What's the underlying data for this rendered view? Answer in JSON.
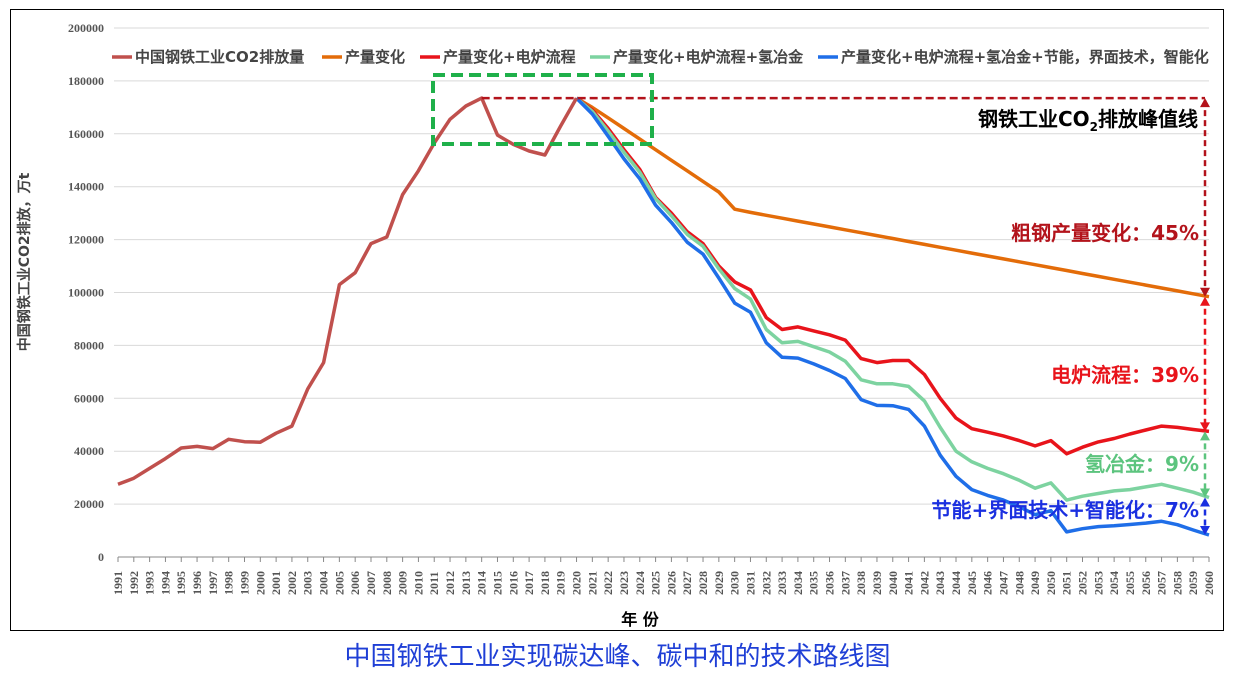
{
  "caption": "中国钢铁工业实现碳达峰、碳中和的技术路线图",
  "annotations": {
    "peak_label": "钢铁工业CO",
    "peak_sub": "2",
    "peak_suffix": "排放峰值线",
    "a1": "粗钢产量变化：45%",
    "a2": "电炉流程：39%",
    "a3": "氢冶金：9%",
    "a4": "节能+界面技术+智能化：7%"
  },
  "colors": {
    "historical": "#c0504d",
    "s1": "#e36c09",
    "s2": "#e8141b",
    "s3": "#7dd3a0",
    "s4": "#1f6ee8",
    "dashed_red": "#b3131b",
    "green_box": "#1fb04a",
    "a1": "#b3131b",
    "a2": "#e8141b",
    "a3": "#5cc47e",
    "a4": "#1a2fe0"
  },
  "chart_data": {
    "type": "line",
    "title": "",
    "xlabel": "年 份",
    "ylabel": "中国钢铁工业CO2排放，万t",
    "ylim": [
      0,
      200000
    ],
    "yticks": [
      0,
      20000,
      40000,
      60000,
      80000,
      100000,
      120000,
      140000,
      160000,
      180000,
      200000
    ],
    "xlim": [
      1991,
      2060
    ],
    "legend_position": "top",
    "series": [
      {
        "name": "中国钢铁工业CO2排放量",
        "color_key": "historical",
        "x": [
          1991,
          1992,
          1993,
          1994,
          1995,
          1996,
          1997,
          1998,
          1999,
          2000,
          2001,
          2002,
          2003,
          2004,
          2005,
          2006,
          2007,
          2008,
          2009,
          2010,
          2011,
          2012,
          2013,
          2014,
          2015,
          2016,
          2017,
          2018,
          2019,
          2020
        ],
        "y": [
          27500,
          29800,
          33500,
          37200,
          41200,
          41800,
          41000,
          44500,
          43600,
          43400,
          46800,
          49500,
          63500,
          73500,
          103000,
          107500,
          118500,
          121000,
          137000,
          146000,
          156500,
          165500,
          170500,
          173500,
          159500,
          156000,
          153500,
          152000,
          163000,
          173500
        ]
      },
      {
        "name": "产量变化",
        "color_key": "s1",
        "x": [
          2020,
          2021,
          2022,
          2023,
          2024,
          2025,
          2026,
          2027,
          2028,
          2029,
          2030,
          2031,
          2032,
          2033,
          2034,
          2035,
          2036,
          2037,
          2038,
          2039,
          2040,
          2041,
          2042,
          2043,
          2044,
          2045,
          2046,
          2047,
          2048,
          2049,
          2050,
          2051,
          2052,
          2053,
          2054,
          2055,
          2056,
          2057,
          2058,
          2059,
          2060
        ],
        "y": [
          173500,
          170000,
          166000,
          162000,
          158000,
          154000,
          150000,
          146000,
          142000,
          138000,
          131500,
          130300,
          129200,
          128100,
          127000,
          125900,
          124800,
          123700,
          122600,
          121500,
          120400,
          119300,
          118200,
          117100,
          116000,
          114900,
          113800,
          112700,
          111600,
          110500,
          109400,
          108300,
          107200,
          106100,
          105000,
          103900,
          102800,
          101700,
          100600,
          99500,
          98400
        ]
      },
      {
        "name": "产量变化+电炉流程",
        "color_key": "s2",
        "x": [
          2020,
          2021,
          2022,
          2023,
          2024,
          2025,
          2026,
          2027,
          2028,
          2029,
          2030,
          2031,
          2032,
          2033,
          2034,
          2035,
          2036,
          2037,
          2038,
          2039,
          2040,
          2041,
          2042,
          2043,
          2044,
          2045,
          2046,
          2047,
          2048,
          2049,
          2050,
          2051,
          2052,
          2053,
          2054,
          2055,
          2056,
          2057,
          2058,
          2059,
          2060
        ],
        "y": [
          173500,
          169000,
          162000,
          154000,
          146500,
          136000,
          130000,
          123000,
          118500,
          110000,
          104000,
          101000,
          90500,
          86000,
          87000,
          85500,
          84000,
          82000,
          75000,
          73500,
          74300,
          74300,
          69000,
          60000,
          52500,
          48500,
          47200,
          45800,
          44000,
          42000,
          44000,
          39000,
          41500,
          43500,
          44800,
          46500,
          48000,
          49500,
          49000,
          48200,
          47500
        ]
      },
      {
        "name": "产量变化+电炉流程+氢冶金",
        "color_key": "s3",
        "x": [
          2020,
          2021,
          2022,
          2023,
          2024,
          2025,
          2026,
          2027,
          2028,
          2029,
          2030,
          2031,
          2032,
          2033,
          2034,
          2035,
          2036,
          2037,
          2038,
          2039,
          2040,
          2041,
          2042,
          2043,
          2044,
          2045,
          2046,
          2047,
          2048,
          2049,
          2050,
          2051,
          2052,
          2053,
          2054,
          2055,
          2056,
          2057,
          2058,
          2059,
          2060
        ],
        "y": [
          173500,
          168500,
          161000,
          153000,
          145500,
          135500,
          129000,
          122000,
          117500,
          109000,
          101500,
          97500,
          86000,
          81000,
          81500,
          79500,
          77500,
          74000,
          67000,
          65500,
          65500,
          64500,
          59000,
          49000,
          40000,
          36000,
          33500,
          31500,
          29000,
          26000,
          28000,
          21500,
          23000,
          24000,
          25000,
          25500,
          26500,
          27500,
          26000,
          24500,
          22500
        ]
      },
      {
        "name": "产量变化+电炉流程+氢冶金+节能，界面技术，智能化",
        "color_key": "s4",
        "x": [
          2020,
          2021,
          2022,
          2023,
          2024,
          2025,
          2026,
          2027,
          2028,
          2029,
          2030,
          2031,
          2032,
          2033,
          2034,
          2035,
          2036,
          2037,
          2038,
          2039,
          2040,
          2041,
          2042,
          2043,
          2044,
          2045,
          2046,
          2047,
          2048,
          2049,
          2050,
          2051,
          2052,
          2053,
          2054,
          2055,
          2056,
          2057,
          2058,
          2059,
          2060
        ],
        "y": [
          173500,
          167500,
          159000,
          150500,
          143000,
          133000,
          126500,
          119000,
          114500,
          105500,
          96000,
          92500,
          81000,
          75500,
          75200,
          73000,
          70500,
          67500,
          59500,
          57300,
          57200,
          55800,
          49500,
          38500,
          30500,
          25500,
          23300,
          21500,
          19000,
          16000,
          17500,
          9500,
          10700,
          11500,
          11800,
          12300,
          12800,
          13500,
          12200,
          10200,
          8300
        ]
      }
    ]
  }
}
